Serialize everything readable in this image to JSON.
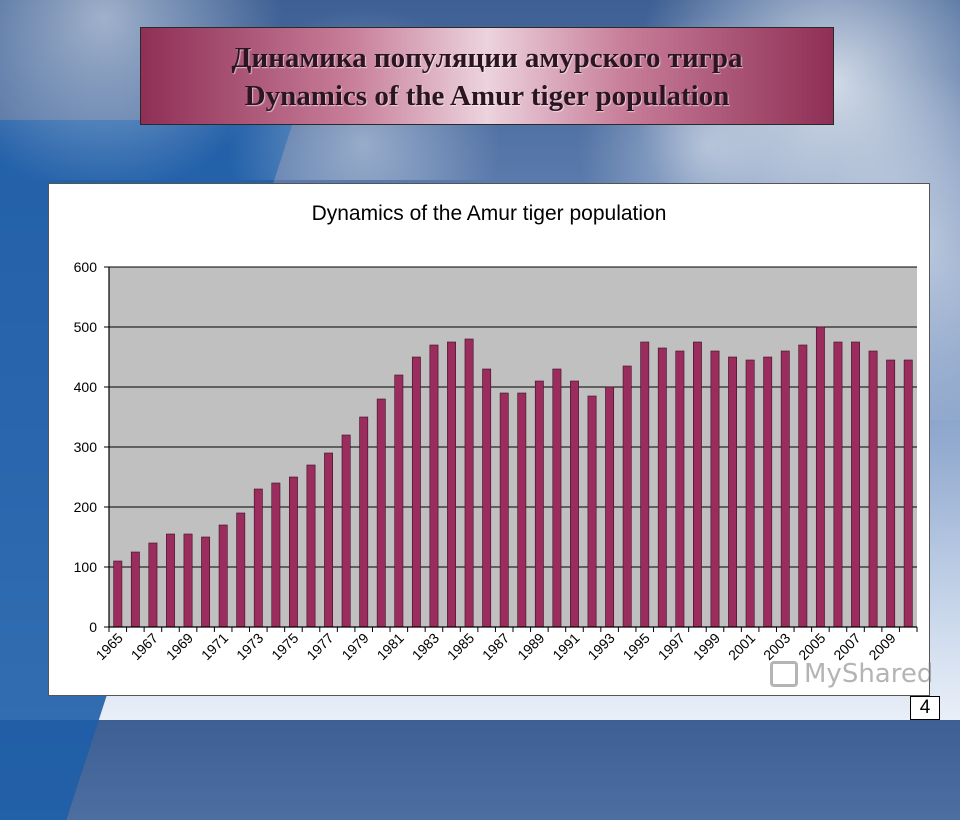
{
  "slide": {
    "title_ru": "Динамика популяции амурского тигра",
    "title_en": "Dynamics of the Amur tiger population",
    "page_number": "4",
    "watermark": "MyShared"
  },
  "colors": {
    "bar": "#9b2d5e",
    "plot_area": "#c0c0c0",
    "title_box": "#b9587e"
  },
  "chart_data": {
    "type": "bar",
    "title": "Dynamics of the Amur tiger population",
    "xlabel": "",
    "ylabel": "",
    "ylim": [
      0,
      600
    ],
    "yticks": [
      0,
      100,
      200,
      300,
      400,
      500,
      600
    ],
    "grid": true,
    "legend": "none",
    "categories": [
      "1965",
      "1966",
      "1967",
      "1968",
      "1969",
      "1970",
      "1971",
      "1972",
      "1973",
      "1974",
      "1975",
      "1976",
      "1977",
      "1978",
      "1979",
      "1980",
      "1981",
      "1982",
      "1983",
      "1984",
      "1985",
      "1986",
      "1987",
      "1988",
      "1989",
      "1990",
      "1991",
      "1992",
      "1993",
      "1994",
      "1995",
      "1996",
      "1997",
      "1998",
      "1999",
      "2000",
      "2001",
      "2002",
      "2003",
      "2004",
      "2005",
      "2006",
      "2007",
      "2008",
      "2009",
      "2010"
    ],
    "tick_labels": [
      "1965",
      "1967",
      "1969",
      "1971",
      "1973",
      "1975",
      "1977",
      "1979",
      "1981",
      "1983",
      "1985",
      "1987",
      "1989",
      "1991",
      "1993",
      "1995",
      "1997",
      "1999",
      "2001",
      "2003",
      "2005",
      "2007",
      "2009"
    ],
    "values": [
      110,
      125,
      140,
      155,
      155,
      150,
      170,
      190,
      230,
      240,
      250,
      270,
      290,
      320,
      350,
      380,
      420,
      450,
      470,
      475,
      480,
      430,
      390,
      390,
      410,
      430,
      410,
      385,
      400,
      435,
      475,
      465,
      460,
      475,
      460,
      450,
      445,
      450,
      460,
      470,
      500,
      475,
      475,
      460,
      445,
      445
    ]
  }
}
